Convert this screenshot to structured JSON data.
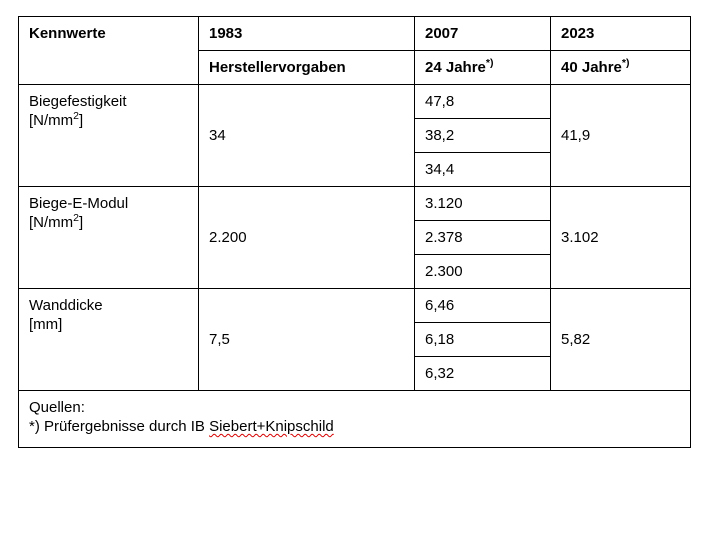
{
  "header": {
    "kennwerte": "Kennwerte",
    "y1983": "1983",
    "y2007": "2007",
    "y2023": "2023",
    "sub1983": "Herstellervorgaben",
    "sub2007_pre": "24 Jahre",
    "sub2023_pre": "40 Jahre",
    "sup_marker": "*)"
  },
  "rows": [
    {
      "name_line1": "Biegefestigkeit",
      "name_line2_pre": "[N/mm",
      "name_line2_sup": "2",
      "name_line2_post": "]",
      "val1983": "34",
      "val2007": [
        "47,8",
        "38,2",
        "34,4"
      ],
      "val2023": "41,9"
    },
    {
      "name_line1": "Biege-E-Modul",
      "name_line2_pre": "[N/mm",
      "name_line2_sup": "2",
      "name_line2_post": "]",
      "val1983": "2.200",
      "val2007": [
        "3.120",
        "2.378",
        "2.300"
      ],
      "val2023": "3.102"
    },
    {
      "name_line1": "Wanddicke",
      "name_line2_pre": "[mm]",
      "name_line2_sup": "",
      "name_line2_post": "",
      "val1983": "7,5",
      "val2007": [
        "6,46",
        "6,18",
        "6,32"
      ],
      "val2023": "5,82"
    }
  ],
  "footer": {
    "line1": "Quellen:",
    "line2_pre": "*) Prüfergebnisse durch IB ",
    "line2_err": "Siebert+Knipschild"
  }
}
